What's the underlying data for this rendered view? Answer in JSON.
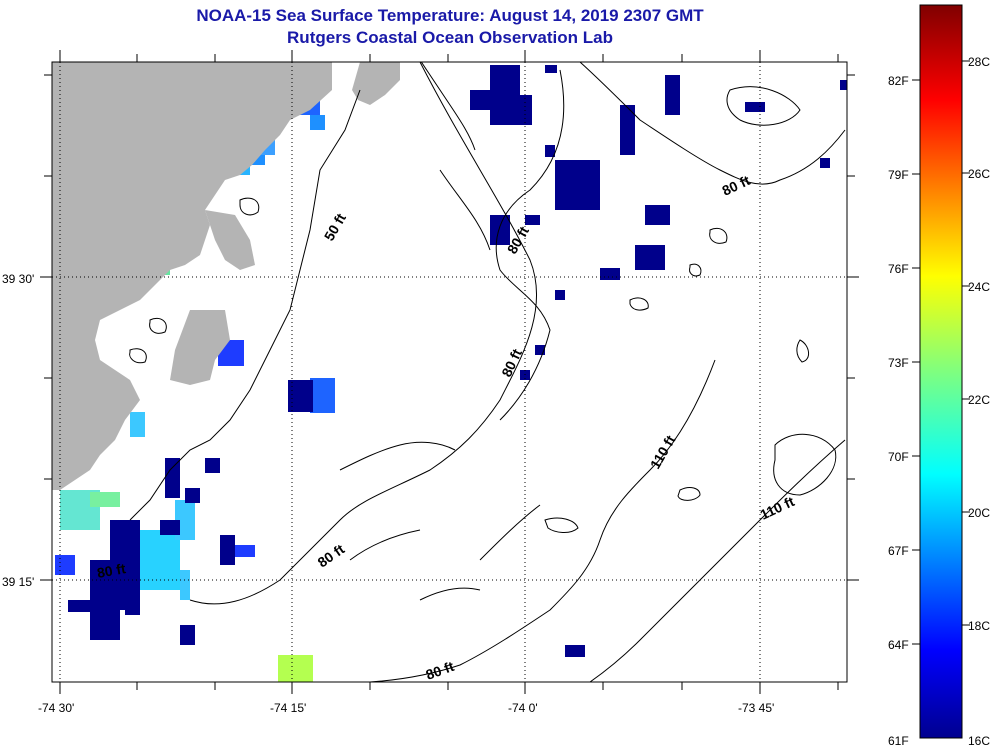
{
  "title_line1": "NOAA-15 Sea Surface Temperature:  August 14, 2019 2307 GMT",
  "title_line2": "Rutgers Coastal Ocean Observation Lab",
  "latitude_labels": [
    "39 30'",
    "39 15'"
  ],
  "longitude_labels": [
    "-74 30'",
    "-74 15'",
    "-74 0'",
    "-73 45'"
  ],
  "depth_labels": [
    "50 ft",
    "80 ft",
    "80 ft",
    "80 ft",
    "80 ft",
    "80 ft",
    "110 ft",
    "110 ft",
    "80 ft"
  ],
  "colorbar": {
    "fahrenheit_labels": [
      "82F",
      "79F",
      "76F",
      "73F",
      "70F",
      "67F",
      "64F",
      "61F"
    ],
    "celsius_labels": [
      "28C",
      "26C",
      "24C",
      "22C",
      "20C",
      "18C",
      "16C"
    ]
  },
  "colors": {
    "title": "#1a1aa8",
    "land": "#b4b4b4",
    "cold_pixel": "#00008b"
  }
}
